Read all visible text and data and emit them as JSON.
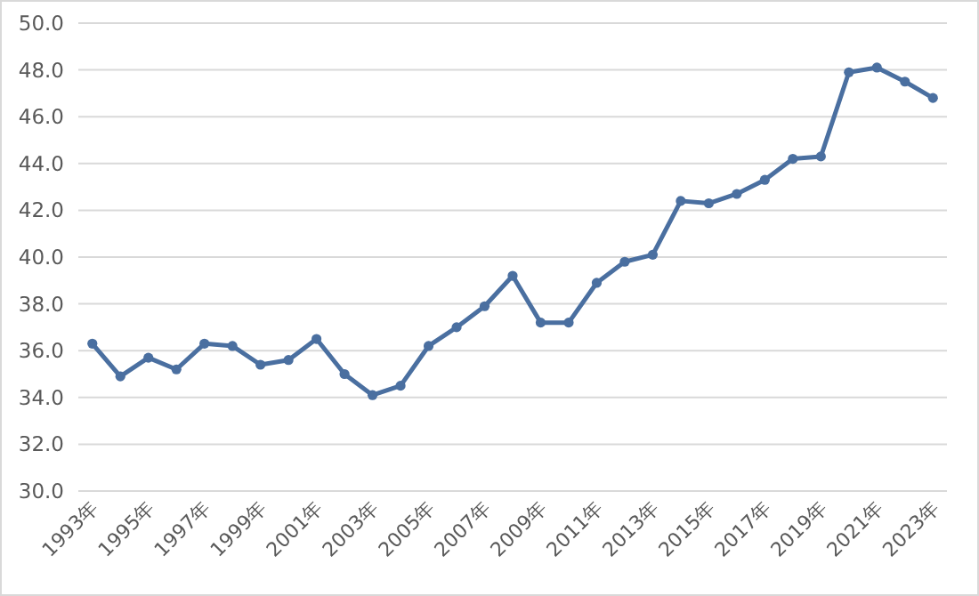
{
  "chart_data": {
    "type": "line",
    "categories": [
      "1993年",
      null,
      "1995年",
      null,
      "1997年",
      null,
      "1999年",
      null,
      "2001年",
      null,
      "2003年",
      null,
      "2005年",
      null,
      "2007年",
      null,
      "2009年",
      null,
      "2011年",
      null,
      "2013年",
      null,
      "2015年",
      null,
      "2017年",
      null,
      "2019年",
      null,
      "2021年",
      null,
      "2023年"
    ],
    "series": [
      {
        "color": "#4a6fa0",
        "values": [
          36.3,
          34.9,
          35.7,
          35.2,
          36.3,
          36.2,
          35.4,
          35.6,
          36.5,
          35.0,
          34.1,
          34.5,
          36.2,
          37.0,
          37.9,
          39.2,
          37.2,
          37.2,
          38.9,
          39.8,
          40.1,
          42.4,
          42.3,
          42.7,
          43.3,
          44.2,
          44.3,
          47.9,
          48.1,
          47.5,
          46.8
        ]
      }
    ],
    "ylim": [
      30,
      50
    ],
    "yticks": [
      {
        "value": 30,
        "label": "30.0"
      },
      {
        "value": 32,
        "label": "32.0"
      },
      {
        "value": 34,
        "label": "34.0"
      },
      {
        "value": 36,
        "label": "36.0"
      },
      {
        "value": 38,
        "label": "38.0"
      },
      {
        "value": 40,
        "label": "40.0"
      },
      {
        "value": 42,
        "label": "42.0"
      },
      {
        "value": 44,
        "label": "44.0"
      },
      {
        "value": 46,
        "label": "46.0"
      },
      {
        "value": 48,
        "label": "48.0"
      },
      {
        "value": 50,
        "label": "50.0"
      }
    ],
    "grid": "y",
    "marker": "circle",
    "line_style": "solid"
  }
}
